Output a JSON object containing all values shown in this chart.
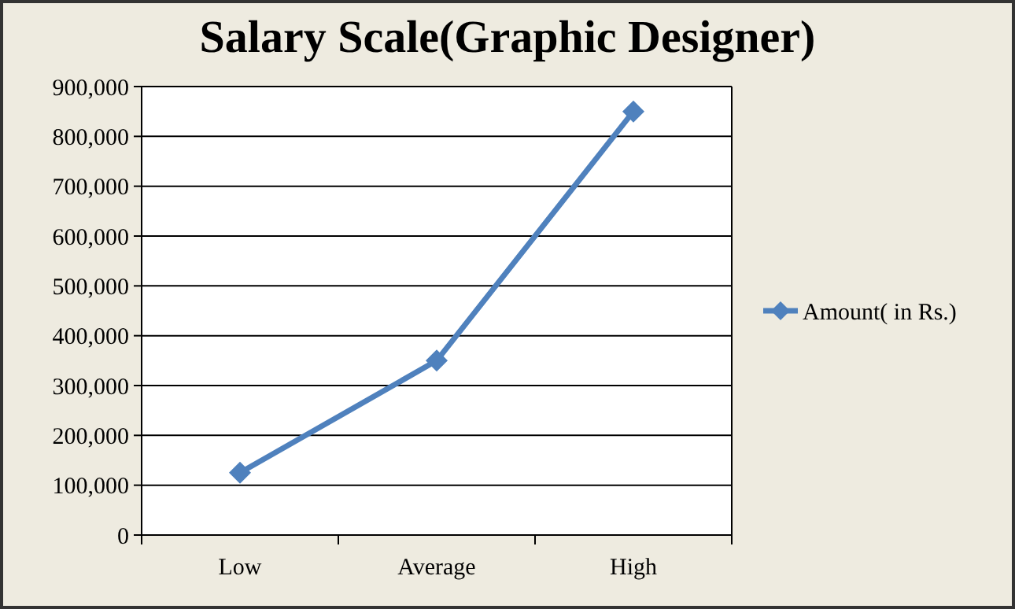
{
  "chart_data": {
    "type": "line",
    "title": "Salary Scale(Graphic Designer)",
    "categories": [
      "Low",
      "Average",
      "High"
    ],
    "series": [
      {
        "name": "Amount( in Rs.)",
        "color": "#4f81bd",
        "values": [
          125000,
          350000,
          850000
        ]
      }
    ],
    "ylim": [
      0,
      900000
    ],
    "yticks": [
      {
        "value": 0,
        "label": "0"
      },
      {
        "value": 100000,
        "label": "100,000"
      },
      {
        "value": 200000,
        "label": "200,000"
      },
      {
        "value": 300000,
        "label": "300,000"
      },
      {
        "value": 400000,
        "label": "400,000"
      },
      {
        "value": 500000,
        "label": "500,000"
      },
      {
        "value": 600000,
        "label": "600,000"
      },
      {
        "value": 700000,
        "label": "700,000"
      },
      {
        "value": 800000,
        "label": "800,000"
      },
      {
        "value": 900000,
        "label": "900,000"
      }
    ],
    "grid": "y",
    "legend": "right",
    "marker": "diamond",
    "line_style": "solid"
  }
}
